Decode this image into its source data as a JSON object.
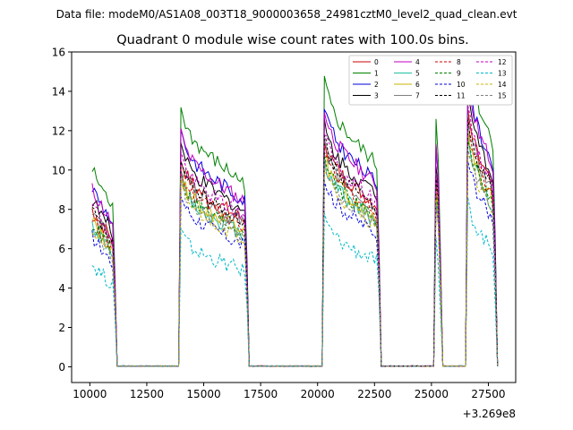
{
  "chart_data": {
    "type": "line",
    "suptitle": "Data file: modeM0/AS1A08_003T18_9000003658_24981cztM0_level2_quad_clean.evt",
    "title": "Quadrant 0 module wise count rates with 100.0s bins.",
    "xlabel": "",
    "ylabel": "",
    "x_offset_label": "+3.269e8",
    "xlim": [
      9200,
      28700
    ],
    "ylim": [
      -0.8,
      16.0
    ],
    "x_ticks": [
      10000,
      12500,
      15000,
      17500,
      20000,
      22500,
      25000,
      27500
    ],
    "x_tick_labels": [
      "10000",
      "12500",
      "15000",
      "17500",
      "20000",
      "22500",
      "25000",
      "27500"
    ],
    "y_ticks": [
      0,
      2,
      4,
      6,
      8,
      10,
      12,
      14,
      16
    ],
    "y_tick_labels": [
      "0",
      "2",
      "4",
      "6",
      "8",
      "10",
      "12",
      "14",
      "16"
    ],
    "grid": false,
    "legend_position": "top-right",
    "good_time_intervals": [
      [
        10100,
        11100
      ],
      [
        14000,
        16900
      ],
      [
        20300,
        22700
      ],
      [
        25200,
        25400
      ],
      [
        26600,
        27800
      ]
    ],
    "series": [
      {
        "name": "0",
        "color": "#d00000",
        "dash": "solid",
        "level": 8.0
      },
      {
        "name": "1",
        "color": "#008000",
        "dash": "solid",
        "level": 10.0
      },
      {
        "name": "2",
        "color": "#0000dd",
        "dash": "solid",
        "level": 9.1
      },
      {
        "name": "3",
        "color": "#000000",
        "dash": "solid",
        "level": 8.5
      },
      {
        "name": "4",
        "color": "#c000c0",
        "dash": "solid",
        "level": 9.0
      },
      {
        "name": "5",
        "color": "#20c0a0",
        "dash": "solid",
        "level": 7.2
      },
      {
        "name": "6",
        "color": "#c8b400",
        "dash": "solid",
        "level": 7.4
      },
      {
        "name": "7",
        "color": "#808080",
        "dash": "solid",
        "level": 7.8
      },
      {
        "name": "8",
        "color": "#d00000",
        "dash": "dashed",
        "level": 7.6
      },
      {
        "name": "9",
        "color": "#008000",
        "dash": "dashed",
        "level": 7.3
      },
      {
        "name": "10",
        "color": "#0000dd",
        "dash": "dashed",
        "level": 6.6
      },
      {
        "name": "11",
        "color": "#000000",
        "dash": "dashed",
        "level": 7.9
      },
      {
        "name": "12",
        "color": "#c000c0",
        "dash": "dashed",
        "level": 8.2
      },
      {
        "name": "13",
        "color": "#00b8c8",
        "dash": "dashed",
        "level": 5.2
      },
      {
        "name": "14",
        "color": "#c8b400",
        "dash": "dashed",
        "level": 7.0
      },
      {
        "name": "15",
        "color": "#808080",
        "dash": "dashed",
        "level": 7.1
      }
    ]
  }
}
